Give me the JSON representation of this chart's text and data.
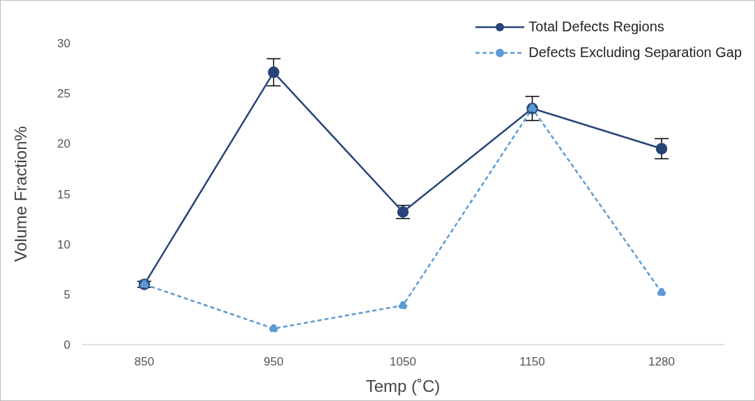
{
  "chart_data": {
    "type": "line",
    "xlabel": "Temp (˚C)",
    "ylabel": "Volume Fraction%",
    "categories": [
      "850",
      "950",
      "1050",
      "1150",
      "1280"
    ],
    "series": [
      {
        "name": "Total Defects Regions",
        "color": "#264478",
        "values": [
          6.0,
          27.1,
          13.2,
          23.5,
          19.5
        ],
        "errors": [
          0.3,
          1.35,
          0.65,
          1.2,
          1.0
        ],
        "line_style": "solid"
      },
      {
        "name": "Defects Excluding Separation Gap",
        "color": "#5b9bd5",
        "values": [
          6.0,
          1.6,
          3.9,
          23.5,
          5.2
        ],
        "line_style": "dashed"
      }
    ],
    "ylim": [
      0,
      30
    ],
    "yticks": [
      0,
      5,
      10,
      15,
      20,
      25,
      30
    ],
    "legend": "top right",
    "marker": "circle"
  }
}
